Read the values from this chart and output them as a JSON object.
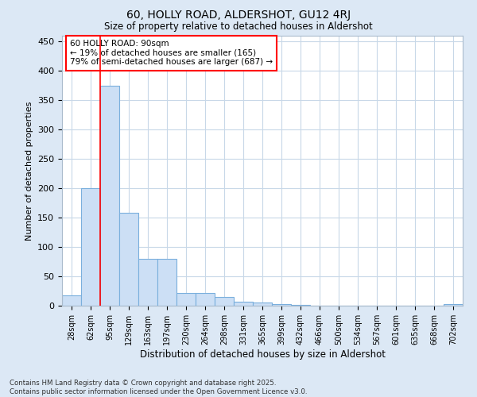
{
  "title1": "60, HOLLY ROAD, ALDERSHOT, GU12 4RJ",
  "title2": "Size of property relative to detached houses in Aldershot",
  "xlabel": "Distribution of detached houses by size in Aldershot",
  "ylabel": "Number of detached properties",
  "categories": [
    "28sqm",
    "62sqm",
    "95sqm",
    "129sqm",
    "163sqm",
    "197sqm",
    "230sqm",
    "264sqm",
    "298sqm",
    "331sqm",
    "365sqm",
    "399sqm",
    "432sqm",
    "466sqm",
    "500sqm",
    "534sqm",
    "567sqm",
    "601sqm",
    "635sqm",
    "668sqm",
    "702sqm"
  ],
  "values": [
    18,
    200,
    375,
    158,
    80,
    80,
    22,
    22,
    15,
    7,
    5,
    3,
    2,
    0,
    0,
    0,
    0,
    0,
    0,
    0,
    3
  ],
  "bar_color": "#ccdff5",
  "bar_edge_color": "#7aafdd",
  "grid_color": "#c8d8e8",
  "plot_bg_color": "#ffffff",
  "fig_bg_color": "#dce8f5",
  "vline_color": "red",
  "vline_x": 1.5,
  "annotation_text": "60 HOLLY ROAD: 90sqm\n← 19% of detached houses are smaller (165)\n79% of semi-detached houses are larger (687) →",
  "annotation_box_color": "white",
  "annotation_box_edge": "red",
  "ylim": [
    0,
    460
  ],
  "yticks": [
    0,
    50,
    100,
    150,
    200,
    250,
    300,
    350,
    400,
    450
  ],
  "footer": "Contains HM Land Registry data © Crown copyright and database right 2025.\nContains public sector information licensed under the Open Government Licence v3.0."
}
